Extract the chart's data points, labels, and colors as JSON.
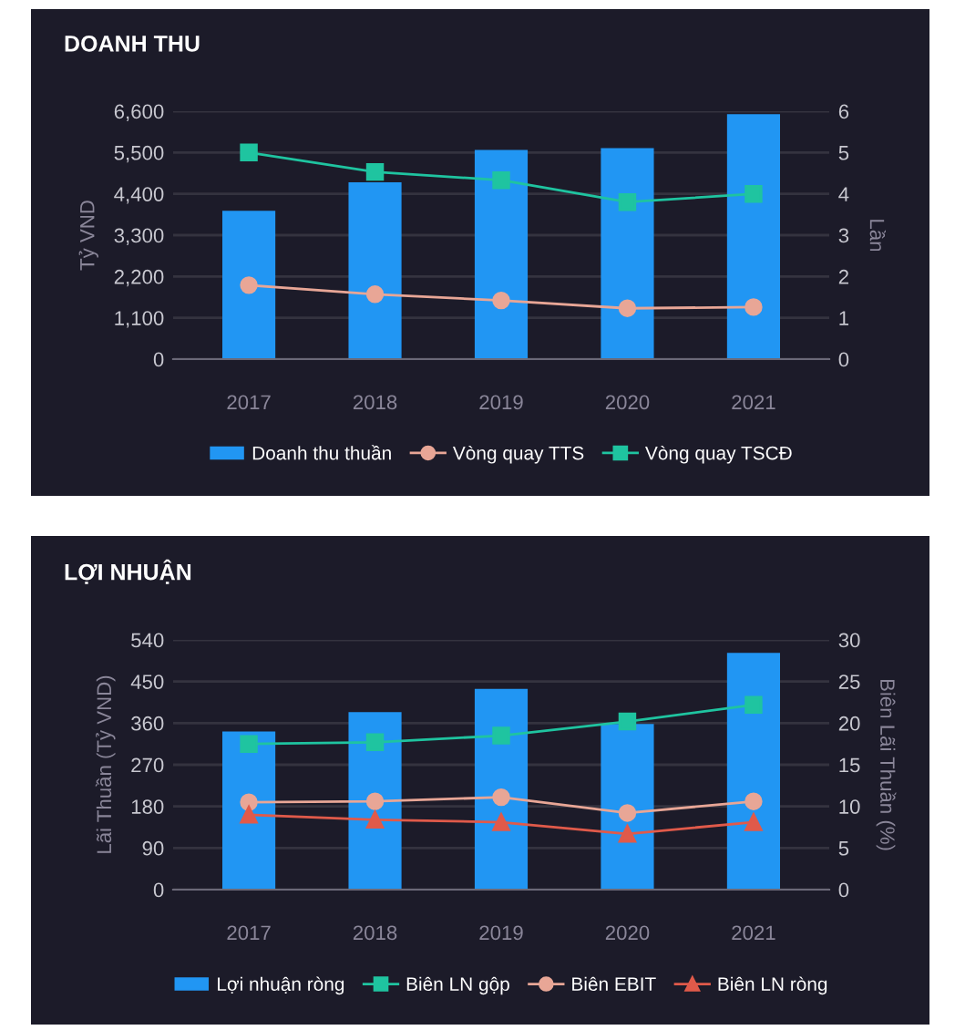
{
  "chart_data": [
    {
      "type": "bar",
      "title": "DOANH THU",
      "categories": [
        "2017",
        "2018",
        "2019",
        "2020",
        "2021"
      ],
      "ylabel": "Tỷ VND",
      "y2label": "Lần",
      "series": [
        {
          "name": "Doanh thu thuần",
          "color": "#2196f3",
          "values": [
            3950,
            4710,
            5570,
            5620,
            6520
          ]
        },
        {
          "name": "Vòng quay TTS",
          "type": "line",
          "axis": "y2",
          "marker": "circle",
          "color": "#e8a696",
          "values": [
            1.79,
            1.57,
            1.42,
            1.23,
            1.26
          ]
        },
        {
          "name": "Vòng quay TSCĐ",
          "type": "line",
          "axis": "y2",
          "marker": "square",
          "color": "#1fc4a0",
          "values": [
            5.0,
            4.53,
            4.33,
            3.8,
            4.0
          ]
        }
      ],
      "ylim": [
        0,
        6600
      ],
      "yticks": [
        0,
        {
          "value": 1100,
          "label": "1,100"
        },
        {
          "value": 2200,
          "label": "2,200"
        },
        {
          "value": 3300,
          "label": "3,300"
        },
        {
          "value": 4400,
          "label": "4,400"
        },
        {
          "value": 5500,
          "label": "5,500"
        },
        {
          "value": 6600,
          "label": "6,600"
        }
      ],
      "y2lim": [
        0,
        6
      ],
      "y2ticks": [
        0,
        1,
        2,
        3,
        4,
        5,
        6
      ],
      "grid": "y",
      "legend": "bottom"
    },
    {
      "type": "bar",
      "title": "LỢI NHUẬN",
      "categories": [
        "2017",
        "2018",
        "2019",
        "2020",
        "2021"
      ],
      "ylabel": "Lãi Thuần (Tỷ VND)",
      "y2label": "Biên Lãi Thuần (%)",
      "series": [
        {
          "name": "Lợi nhuận ròng",
          "color": "#2196f3",
          "values": [
            342,
            384,
            434,
            358,
            512
          ]
        },
        {
          "name": "Biên LN gộp",
          "type": "line",
          "axis": "y2",
          "marker": "square",
          "color": "#1fc4a0",
          "values": [
            17.5,
            17.7,
            18.5,
            20.2,
            22.2
          ]
        },
        {
          "name": "Biên EBIT",
          "type": "line",
          "axis": "y2",
          "marker": "circle",
          "color": "#e8a696",
          "values": [
            10.5,
            10.6,
            11.1,
            9.2,
            10.6
          ]
        },
        {
          "name": "Biên LN ròng",
          "type": "line",
          "axis": "y2",
          "marker": "triangle",
          "color": "#e05a4a",
          "values": [
            9.0,
            8.4,
            8.1,
            6.7,
            8.1
          ]
        }
      ],
      "ylim": [
        0,
        540
      ],
      "yticks": [
        0,
        90,
        180,
        270,
        360,
        450,
        540
      ],
      "y2lim": [
        0,
        30
      ],
      "y2ticks": [
        0,
        5,
        10,
        15,
        20,
        25,
        30
      ],
      "grid": "y",
      "legend": "bottom"
    }
  ]
}
